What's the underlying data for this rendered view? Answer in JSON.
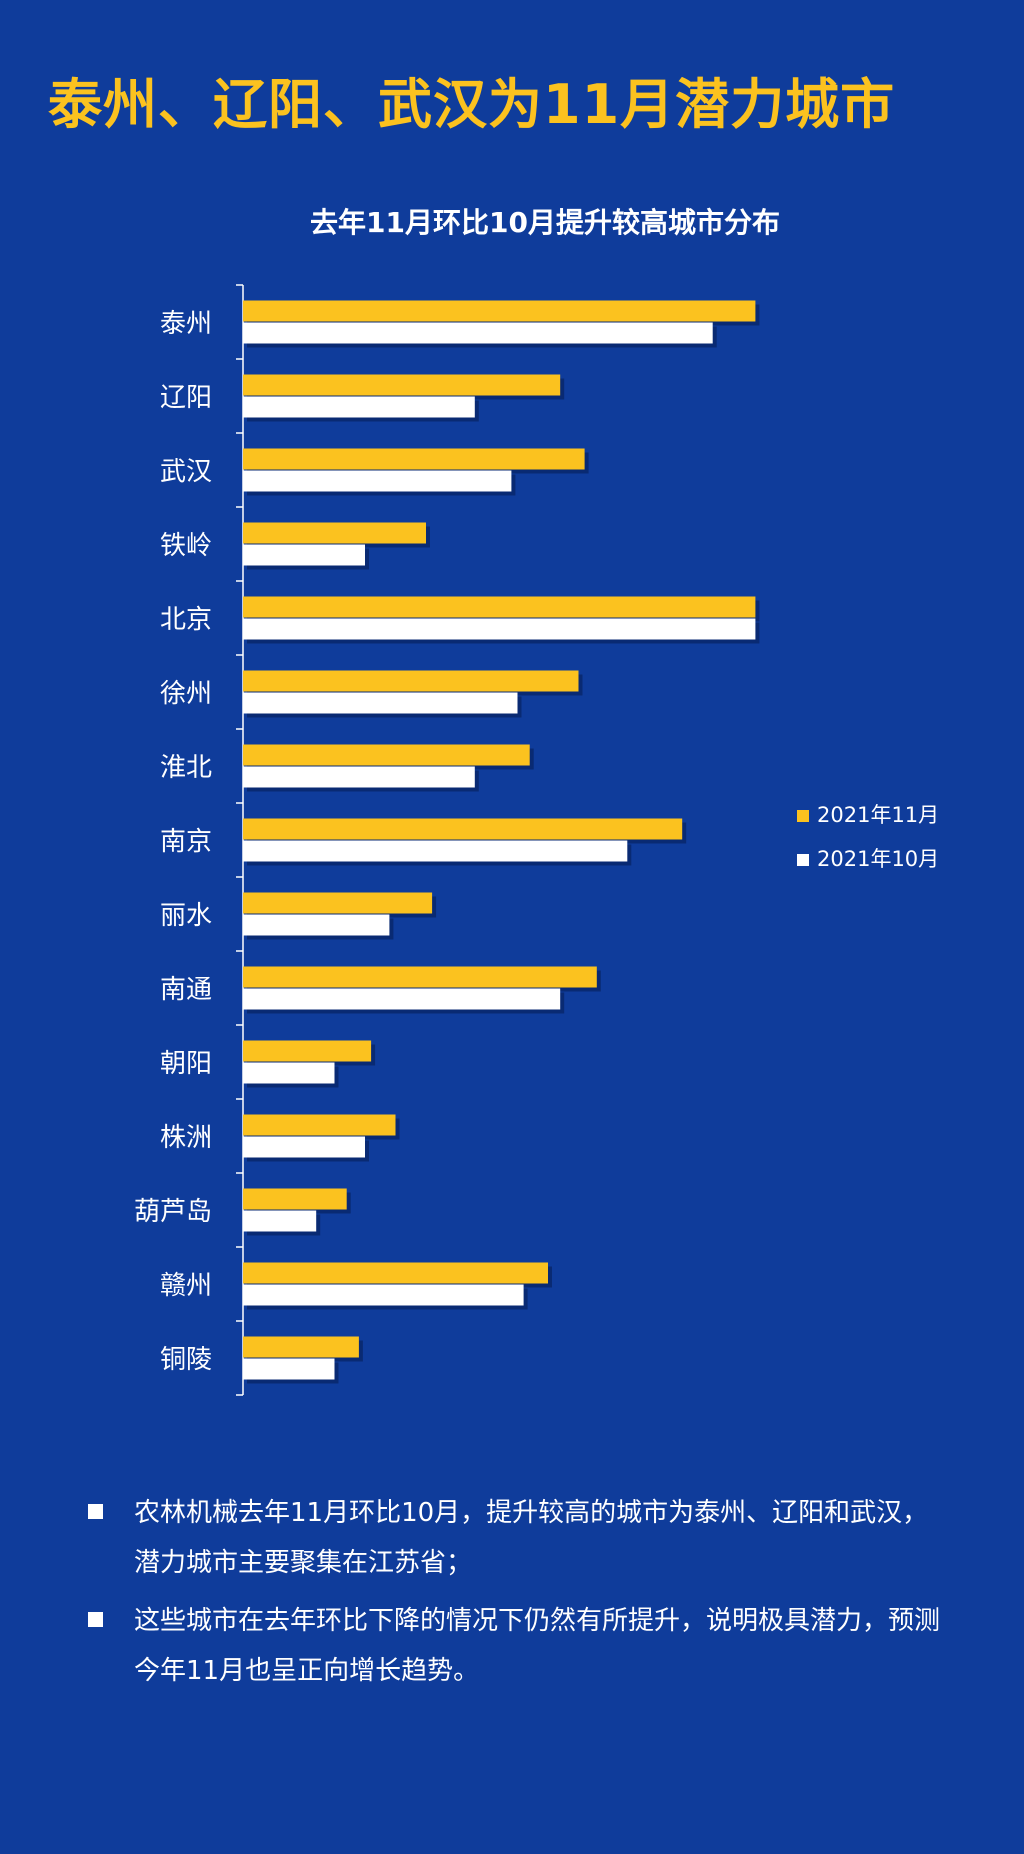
{
  "page": {
    "headline": "泰州、辽阳、武汉为11月潜力城市",
    "colors": {
      "background": "#0f3c9b",
      "accent": "#fbc21f",
      "white": "#ffffff"
    }
  },
  "chart_data": {
    "type": "bar",
    "orientation": "horizontal",
    "title": "去年11月环比10月提升较高城市分布",
    "xlabel": "",
    "ylabel": "",
    "xlim": [
      0,
      100
    ],
    "grid": false,
    "legend_position": "right",
    "categories": [
      "泰州",
      "辽阳",
      "武汉",
      "铁岭",
      "北京",
      "徐州",
      "淮北",
      "南京",
      "丽水",
      "南通",
      "朝阳",
      "株洲",
      "葫芦岛",
      "赣州",
      "铜陵"
    ],
    "series": [
      {
        "name": "2021年11月",
        "color": "#fbc21f",
        "values": [
          84,
          52,
          56,
          30,
          84,
          55,
          47,
          72,
          31,
          58,
          21,
          25,
          17,
          50,
          19
        ]
      },
      {
        "name": "2021年10月",
        "color": "#ffffff",
        "values": [
          77,
          38,
          44,
          20,
          84,
          45,
          38,
          63,
          24,
          52,
          15,
          20,
          12,
          46,
          15
        ]
      }
    ]
  },
  "notes": [
    "农林机械去年11月环比10月，提升较高的城市为泰州、辽阳和武汉，潜力城市主要聚集在江苏省；",
    "这些城市在去年环比下降的情况下仍然有所提升，说明极具潜力，预测今年11月也呈正向增长趋势。"
  ]
}
